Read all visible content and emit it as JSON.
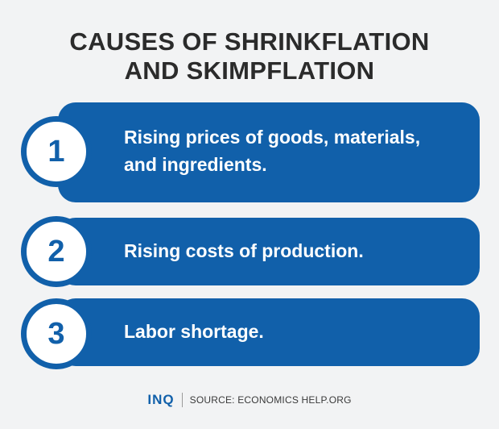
{
  "title": {
    "line1": "CAUSES OF SHRINKFLATION",
    "line2": "AND SKIMPFLATION"
  },
  "causes": [
    {
      "number": "1",
      "text_line1": "Rising prices of goods, materials,",
      "text_line2": "and ingredients."
    },
    {
      "number": "2",
      "text": "Rising costs of production."
    },
    {
      "number": "3",
      "text": "Labor shortage."
    }
  ],
  "footer": {
    "logo": "INQ",
    "source": "SOURCE: ECONOMICS HELP.ORG"
  },
  "colors": {
    "accent": "#1160aa",
    "background": "#f2f3f4",
    "title": "#2b2b2b"
  }
}
